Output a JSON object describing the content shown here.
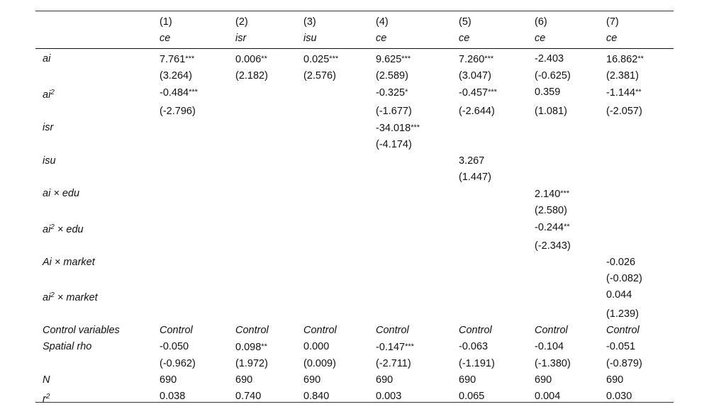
{
  "columns": [
    "(1)",
    "(2)",
    "(3)",
    "(4)",
    "(5)",
    "(6)",
    "(7)"
  ],
  "dependent": [
    "ce",
    "isr",
    "isu",
    "ce",
    "ce",
    "ce",
    "ce"
  ],
  "rows": [
    {
      "label": "ai",
      "label_sup": "",
      "label_suffix": "",
      "kind": "coef",
      "cells": [
        [
          "7.761",
          "***"
        ],
        [
          "0.006",
          "**"
        ],
        [
          "0.025",
          "***"
        ],
        [
          "9.625",
          "***"
        ],
        [
          "7.260",
          "***"
        ],
        [
          "-2.403",
          ""
        ],
        [
          "16.862",
          "**"
        ]
      ]
    },
    {
      "label": "",
      "label_sup": "",
      "label_suffix": "",
      "kind": "tstat",
      "cells": [
        [
          "(3.264)",
          ""
        ],
        [
          "(2.182)",
          ""
        ],
        [
          "(2.576)",
          ""
        ],
        [
          "(2.589)",
          ""
        ],
        [
          "(3.047)",
          ""
        ],
        [
          "(-0.625)",
          ""
        ],
        [
          "(2.381)",
          ""
        ]
      ]
    },
    {
      "label": "ai",
      "label_sup": "2",
      "label_suffix": "",
      "kind": "coef",
      "cells": [
        [
          "-0.484",
          "***"
        ],
        [
          "",
          ""
        ],
        [
          "",
          ""
        ],
        [
          "-0.325",
          "*"
        ],
        [
          "-0.457",
          "***"
        ],
        [
          "0.359",
          ""
        ],
        [
          "-1.144",
          "**"
        ]
      ]
    },
    {
      "label": "",
      "label_sup": "",
      "label_suffix": "",
      "kind": "tstat",
      "cells": [
        [
          "(-2.796)",
          ""
        ],
        [
          "",
          ""
        ],
        [
          "",
          ""
        ],
        [
          "(-1.677)",
          ""
        ],
        [
          "(-2.644)",
          ""
        ],
        [
          "(1.081)",
          ""
        ],
        [
          "(-2.057)",
          ""
        ]
      ]
    },
    {
      "label": "isr",
      "label_sup": "",
      "label_suffix": "",
      "kind": "coef",
      "cells": [
        [
          "",
          ""
        ],
        [
          "",
          ""
        ],
        [
          "",
          ""
        ],
        [
          "-34.018",
          "***"
        ],
        [
          "",
          ""
        ],
        [
          "",
          ""
        ],
        [
          "",
          ""
        ]
      ]
    },
    {
      "label": "",
      "label_sup": "",
      "label_suffix": "",
      "kind": "tstat",
      "cells": [
        [
          "",
          ""
        ],
        [
          "",
          ""
        ],
        [
          "",
          ""
        ],
        [
          "(-4.174)",
          ""
        ],
        [
          "",
          ""
        ],
        [
          "",
          ""
        ],
        [
          "",
          ""
        ]
      ]
    },
    {
      "label": "isu",
      "label_sup": "",
      "label_suffix": "",
      "kind": "coef",
      "cells": [
        [
          "",
          ""
        ],
        [
          "",
          ""
        ],
        [
          "",
          ""
        ],
        [
          "",
          ""
        ],
        [
          "3.267",
          ""
        ],
        [
          "",
          ""
        ],
        [
          "",
          ""
        ]
      ]
    },
    {
      "label": "",
      "label_sup": "",
      "label_suffix": "",
      "kind": "tstat",
      "cells": [
        [
          "",
          ""
        ],
        [
          "",
          ""
        ],
        [
          "",
          ""
        ],
        [
          "",
          ""
        ],
        [
          "(1.447)",
          ""
        ],
        [
          "",
          ""
        ],
        [
          "",
          ""
        ]
      ]
    },
    {
      "label": "ai",
      "label_sup": "",
      "label_suffix": " × edu",
      "kind": "coef",
      "cells": [
        [
          "",
          ""
        ],
        [
          "",
          ""
        ],
        [
          "",
          ""
        ],
        [
          "",
          ""
        ],
        [
          "",
          ""
        ],
        [
          "2.140",
          "***"
        ],
        [
          "",
          ""
        ]
      ]
    },
    {
      "label": "",
      "label_sup": "",
      "label_suffix": "",
      "kind": "tstat",
      "cells": [
        [
          "",
          ""
        ],
        [
          "",
          ""
        ],
        [
          "",
          ""
        ],
        [
          "",
          ""
        ],
        [
          "",
          ""
        ],
        [
          "(2.580)",
          ""
        ],
        [
          "",
          ""
        ]
      ]
    },
    {
      "label": "ai",
      "label_sup": "2",
      "label_suffix": " × edu",
      "kind": "coef",
      "cells": [
        [
          "",
          ""
        ],
        [
          "",
          ""
        ],
        [
          "",
          ""
        ],
        [
          "",
          ""
        ],
        [
          "",
          ""
        ],
        [
          "-0.244",
          "**"
        ],
        [
          "",
          ""
        ]
      ]
    },
    {
      "label": "",
      "label_sup": "",
      "label_suffix": "",
      "kind": "tstat",
      "cells": [
        [
          "",
          ""
        ],
        [
          "",
          ""
        ],
        [
          "",
          ""
        ],
        [
          "",
          ""
        ],
        [
          "",
          ""
        ],
        [
          "(-2.343)",
          ""
        ],
        [
          "",
          ""
        ]
      ]
    },
    {
      "label": "Ai",
      "label_sup": "",
      "label_suffix": " × market",
      "kind": "coef",
      "cells": [
        [
          "",
          ""
        ],
        [
          "",
          ""
        ],
        [
          "",
          ""
        ],
        [
          "",
          ""
        ],
        [
          "",
          ""
        ],
        [
          "",
          ""
        ],
        [
          "-0.026",
          ""
        ]
      ]
    },
    {
      "label": "",
      "label_sup": "",
      "label_suffix": "",
      "kind": "tstat",
      "cells": [
        [
          "",
          ""
        ],
        [
          "",
          ""
        ],
        [
          "",
          ""
        ],
        [
          "",
          ""
        ],
        [
          "",
          ""
        ],
        [
          "",
          ""
        ],
        [
          "(-0.082)",
          ""
        ]
      ]
    },
    {
      "label": "ai",
      "label_sup": "2",
      "label_suffix": " × market",
      "kind": "coef",
      "cells": [
        [
          "",
          ""
        ],
        [
          "",
          ""
        ],
        [
          "",
          ""
        ],
        [
          "",
          ""
        ],
        [
          "",
          ""
        ],
        [
          "",
          ""
        ],
        [
          "0.044",
          ""
        ]
      ]
    },
    {
      "label": "",
      "label_sup": "",
      "label_suffix": "",
      "kind": "tstat",
      "cells": [
        [
          "",
          ""
        ],
        [
          "",
          ""
        ],
        [
          "",
          ""
        ],
        [
          "",
          ""
        ],
        [
          "",
          ""
        ],
        [
          "",
          ""
        ],
        [
          "(1.239)",
          ""
        ]
      ]
    },
    {
      "label": "Control variables",
      "label_sup": "",
      "label_suffix": "",
      "kind": "control",
      "cells": [
        [
          "Control",
          ""
        ],
        [
          "Control",
          ""
        ],
        [
          "Control",
          ""
        ],
        [
          "Control",
          ""
        ],
        [
          "Control",
          ""
        ],
        [
          "Control",
          ""
        ],
        [
          "Control",
          ""
        ]
      ]
    },
    {
      "label": "Spatial rho",
      "label_sup": "",
      "label_suffix": "",
      "kind": "coef",
      "cells": [
        [
          "-0.050",
          ""
        ],
        [
          "0.098",
          "**"
        ],
        [
          "0.000",
          ""
        ],
        [
          "-0.147",
          "***"
        ],
        [
          "-0.063",
          ""
        ],
        [
          "-0.104",
          ""
        ],
        [
          "-0.051",
          ""
        ]
      ]
    },
    {
      "label": "",
      "label_sup": "",
      "label_suffix": "",
      "kind": "tstat",
      "cells": [
        [
          "(-0.962)",
          ""
        ],
        [
          "(1.972)",
          ""
        ],
        [
          "(0.009)",
          ""
        ],
        [
          "(-2.711)",
          ""
        ],
        [
          "(-1.191)",
          ""
        ],
        [
          "(-1.380)",
          ""
        ],
        [
          "(-0.879)",
          ""
        ]
      ]
    },
    {
      "label": "N",
      "label_sup": "",
      "label_suffix": "",
      "kind": "stat",
      "cells": [
        [
          "690",
          ""
        ],
        [
          "690",
          ""
        ],
        [
          "690",
          ""
        ],
        [
          "690",
          ""
        ],
        [
          "690",
          ""
        ],
        [
          "690",
          ""
        ],
        [
          "690",
          ""
        ]
      ]
    },
    {
      "label": "r",
      "label_sup": "2",
      "label_suffix": "",
      "kind": "stat",
      "cells": [
        [
          "0.038",
          ""
        ],
        [
          "0.740",
          ""
        ],
        [
          "0.840",
          ""
        ],
        [
          "0.003",
          ""
        ],
        [
          "0.065",
          ""
        ],
        [
          "0.004",
          ""
        ],
        [
          "0.030",
          ""
        ]
      ]
    }
  ]
}
